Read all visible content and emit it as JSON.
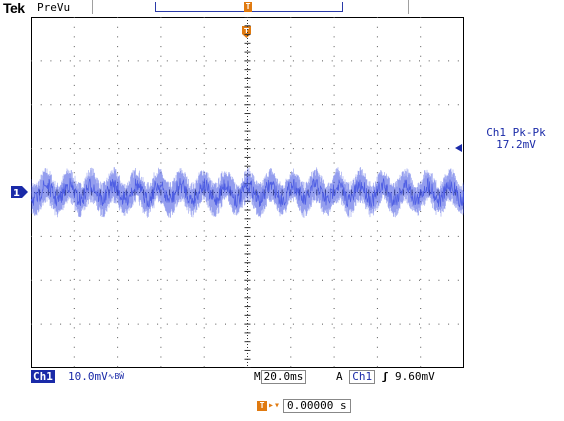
{
  "header": {
    "brand": "Tek",
    "run_state": "PreVu"
  },
  "trigger_position": {
    "marker_symbol": "T"
  },
  "channel": {
    "name": "Ch1",
    "marker_label": "1",
    "scale": "10.0mV",
    "bandwidth_symbol": "∿BŴ",
    "color": "#1a2aa8",
    "waveform_color": "#3c4ee0"
  },
  "measurement": {
    "label": "Ch1 Pk-Pk",
    "value": "17.2mV"
  },
  "timebase": {
    "mode": "M",
    "value": "20.0ms"
  },
  "trigger": {
    "mode": "A",
    "source": "Ch1",
    "slope_symbol": "╱",
    "level": "9.60mV"
  },
  "delay": {
    "icon": "T",
    "arrow": "▸▾",
    "value": "0.00000 s"
  },
  "colors": {
    "accent_orange": "#e07a10",
    "grid": "#000000"
  }
}
